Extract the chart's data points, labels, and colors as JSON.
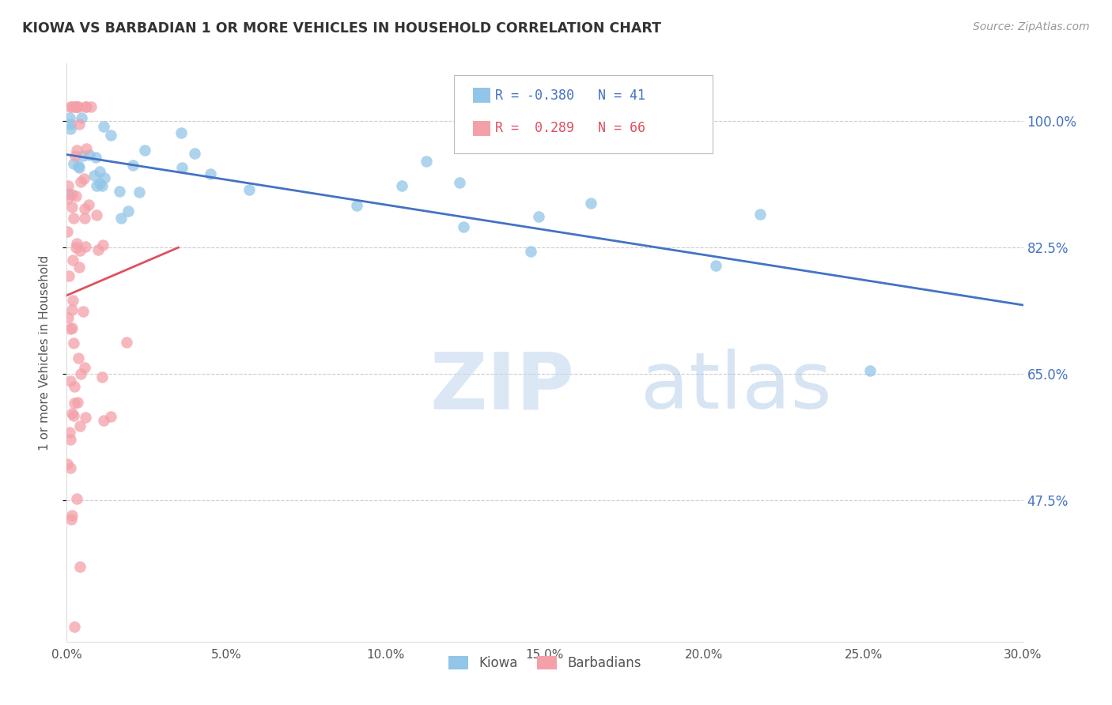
{
  "title": "KIOWA VS BARBADIAN 1 OR MORE VEHICLES IN HOUSEHOLD CORRELATION CHART",
  "source": "Source: ZipAtlas.com",
  "ylabel": "1 or more Vehicles in Household",
  "xlim": [
    0.0,
    30.0
  ],
  "ylim": [
    28.0,
    108.0
  ],
  "yticks": [
    47.5,
    65.0,
    82.5,
    100.0
  ],
  "xticks": [
    0.0,
    5.0,
    10.0,
    15.0,
    20.0,
    25.0,
    30.0
  ],
  "xtick_labels": [
    "0.0%",
    "5.0%",
    "10.0%",
    "15.0%",
    "20.0%",
    "25.0%",
    "30.0%"
  ],
  "ytick_labels_right": [
    "47.5%",
    "65.0%",
    "82.5%",
    "100.0%"
  ],
  "kiowa_color": "#92C5E8",
  "barbadian_color": "#F4A0A8",
  "kiowa_line_color": "#4472C4",
  "barbadian_line_color": "#E05060",
  "kiowa_R": -0.38,
  "kiowa_N": 41,
  "barbadian_R": 0.289,
  "barbadian_N": 66,
  "legend_label_kiowa": "Kiowa",
  "legend_label_barbadian": "Barbadians",
  "background_color": "#FFFFFF",
  "grid_color": "#CCCCCC",
  "title_color": "#333333",
  "label_color": "#555555",
  "right_axis_color": "#4472C4",
  "watermark_zip_color": "#C5D8F0",
  "watermark_atlas_color": "#A8C4E8"
}
